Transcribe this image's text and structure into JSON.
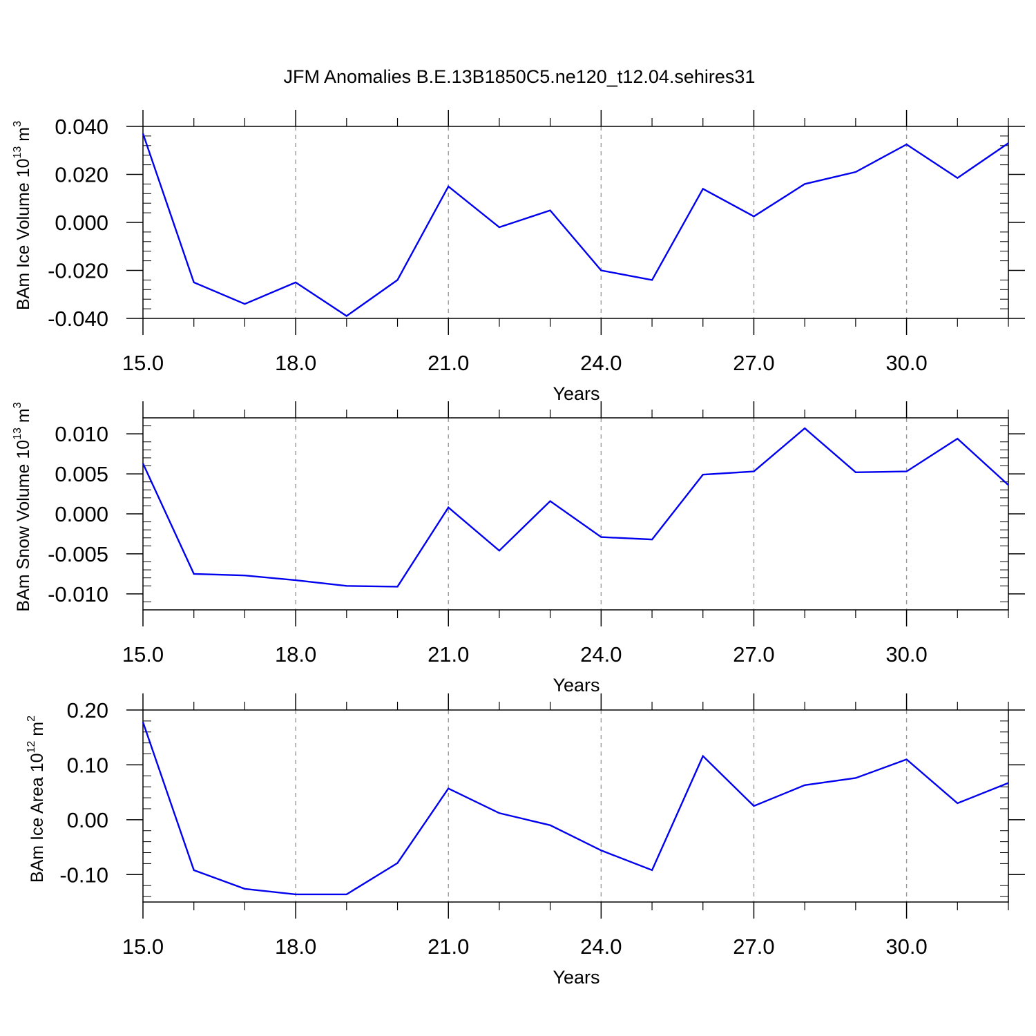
{
  "figure": {
    "title": "JFM Anomalies B.E.13B1850C5.ne120_t12.04.sehires31"
  },
  "colors": {
    "line": "#0000ee",
    "axis": "#000000",
    "grid": "#999999"
  },
  "chart_data": [
    {
      "type": "line",
      "title": "",
      "xlabel": "Years",
      "ylabel": {
        "prefix": "BAm Ice Volume 10",
        "exp": "13",
        "unit": " m",
        "unit_exp": "3"
      },
      "xlim": [
        15,
        32
      ],
      "ylim": [
        -0.04,
        0.04
      ],
      "xticks": [
        15,
        18,
        21,
        24,
        27,
        30
      ],
      "xticklabels": [
        "15.0",
        "18.0",
        "21.0",
        "24.0",
        "27.0",
        "30.0"
      ],
      "yticks": [
        -0.04,
        -0.02,
        0,
        0.02,
        0.04
      ],
      "yticklabels": [
        "-0.040",
        "-0.020",
        "0.000",
        "0.020",
        "0.040"
      ],
      "grid": "vertical-dashed",
      "x": [
        15,
        16,
        17,
        18,
        19,
        20,
        21,
        22,
        23,
        24,
        25,
        26,
        27,
        28,
        29,
        30,
        31,
        32
      ],
      "series": [
        {
          "values": [
            0.037,
            -0.025,
            -0.034,
            -0.025,
            -0.039,
            -0.024,
            0.015,
            -0.002,
            0.005,
            -0.02,
            -0.024,
            0.014,
            0.0025,
            0.016,
            0.021,
            0.0325,
            0.0185,
            0.033
          ]
        }
      ]
    },
    {
      "type": "line",
      "title": "",
      "xlabel": "Years",
      "ylabel": {
        "prefix": "BAm Snow Volume 10",
        "exp": "13",
        "unit": " m",
        "unit_exp": "3"
      },
      "xlim": [
        15,
        32
      ],
      "ylim": [
        -0.012,
        0.012
      ],
      "xticks": [
        15,
        18,
        21,
        24,
        27,
        30
      ],
      "xticklabels": [
        "15.0",
        "18.0",
        "21.0",
        "24.0",
        "27.0",
        "30.0"
      ],
      "yticks": [
        -0.01,
        -0.005,
        0,
        0.005,
        0.01
      ],
      "yticklabels": [
        "-0.010",
        "-0.005",
        "0.000",
        "0.005",
        "0.010"
      ],
      "grid": "vertical-dashed",
      "x": [
        15,
        16,
        17,
        18,
        19,
        20,
        21,
        22,
        23,
        24,
        25,
        26,
        27,
        28,
        29,
        30,
        31,
        32
      ],
      "series": [
        {
          "values": [
            0.0063,
            -0.0075,
            -0.0077,
            -0.0083,
            -0.009,
            -0.0091,
            0.0008,
            -0.0046,
            0.0016,
            -0.0029,
            -0.0032,
            0.0049,
            0.0053,
            0.0107,
            0.0052,
            0.0053,
            0.0094,
            0.0036
          ]
        }
      ]
    },
    {
      "type": "line",
      "title": "",
      "xlabel": "Years",
      "ylabel": {
        "prefix": "BAm Ice Area 10",
        "exp": "12",
        "unit": " m",
        "unit_exp": "2"
      },
      "xlim": [
        15,
        32
      ],
      "ylim": [
        -0.15,
        0.2
      ],
      "xticks": [
        15,
        18,
        21,
        24,
        27,
        30
      ],
      "xticklabels": [
        "15.0",
        "18.0",
        "21.0",
        "24.0",
        "27.0",
        "30.0"
      ],
      "yticks": [
        -0.1,
        0,
        0.1,
        0.2
      ],
      "yticklabels": [
        "-0.10",
        "0.00",
        "0.10",
        "0.20"
      ],
      "grid": "vertical-dashed",
      "x": [
        15,
        16,
        17,
        18,
        19,
        20,
        21,
        22,
        23,
        24,
        25,
        26,
        27,
        28,
        29,
        30,
        31,
        32
      ],
      "series": [
        {
          "values": [
            0.178,
            -0.092,
            -0.126,
            -0.136,
            -0.136,
            -0.079,
            0.057,
            0.012,
            -0.01,
            -0.056,
            -0.092,
            0.116,
            0.025,
            0.063,
            0.076,
            0.11,
            0.03,
            0.067
          ]
        }
      ]
    }
  ]
}
